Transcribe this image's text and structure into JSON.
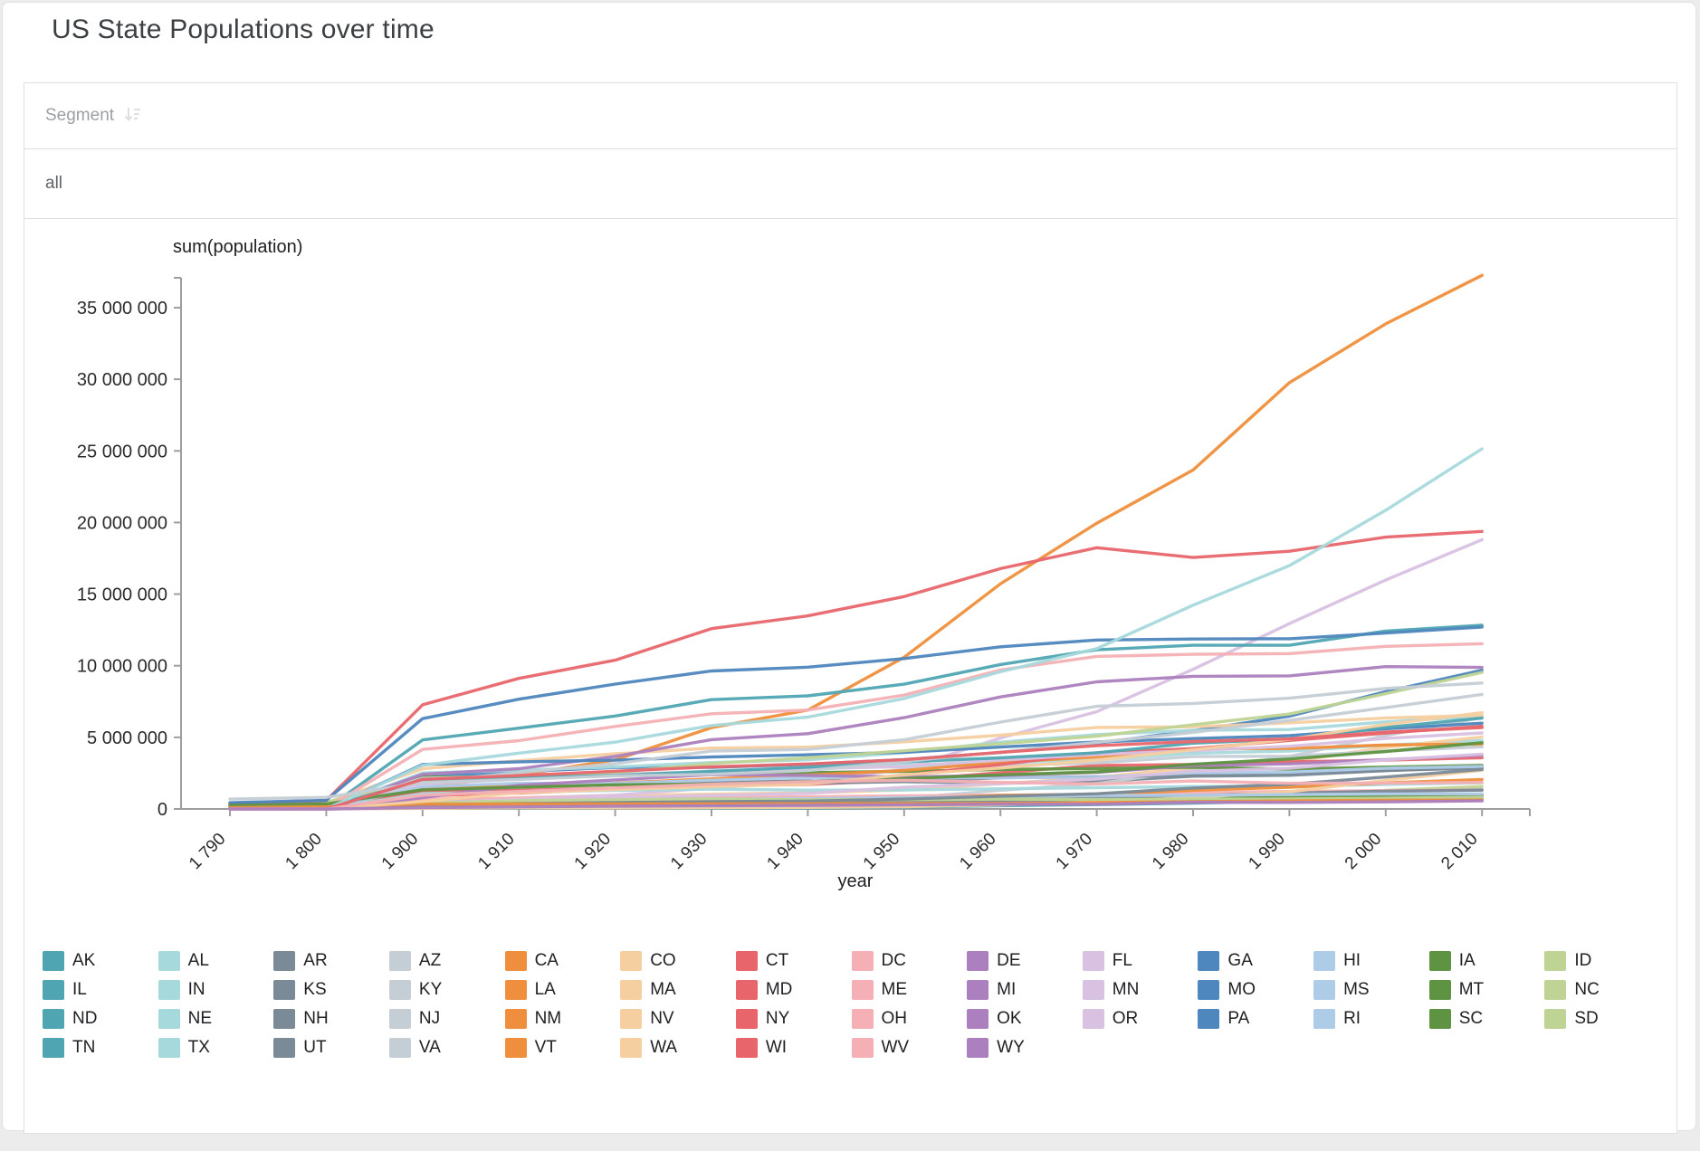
{
  "page": {
    "title": "US State Populations over time"
  },
  "segment_table": {
    "header_label": "Segment",
    "sort_icon": "sort-descending-icon",
    "selected_value": "all"
  },
  "chart_data": {
    "type": "line",
    "xlabel": "year",
    "ylabel": "sum(population)",
    "x": [
      1790,
      1800,
      1900,
      1910,
      1920,
      1930,
      1940,
      1950,
      1960,
      1970,
      1980,
      1990,
      2000,
      2010
    ],
    "x_tick_labels": [
      "1 790",
      "1 800",
      "1 900",
      "1 910",
      "1 920",
      "1 930",
      "1 940",
      "1 950",
      "1 960",
      "1 970",
      "1 980",
      "1 990",
      "2 000",
      "2 010"
    ],
    "y_ticks": [
      0,
      5000000,
      10000000,
      15000000,
      20000000,
      25000000,
      30000000,
      35000000
    ],
    "y_tick_labels": [
      "0",
      "5 000 000",
      "10 000 000",
      "15 000 000",
      "20 000 000",
      "25 000 000",
      "30 000 000",
      "35 000 000"
    ],
    "ylim": [
      0,
      37100000
    ],
    "grid": false,
    "legend_position": "bottom",
    "palette": [
      "#4FA5B2",
      "#A6D9DC",
      "#7A8A97",
      "#C5CDD5",
      "#EF8E3C",
      "#F5CFA0",
      "#E8666B",
      "#F4B0B4",
      "#AC7FBE",
      "#D9C1E1",
      "#4E86BE",
      "#AECBE8",
      "#5E9441",
      "#BFD494"
    ],
    "series": [
      {
        "name": "AK",
        "values": [
          0,
          0,
          63592,
          64356,
          55036,
          59278,
          72524,
          128643,
          226167,
          302173,
          401851,
          550043,
          626932,
          710231
        ]
      },
      {
        "name": "AL",
        "values": [
          0,
          1250,
          1828697,
          2138093,
          2348174,
          2646248,
          2832961,
          3061743,
          3266740,
          3444165,
          3893888,
          4040587,
          4447100,
          4779736
        ]
      },
      {
        "name": "AR",
        "values": [
          0,
          0,
          1311564,
          1574449,
          1752204,
          1854482,
          1949387,
          1909511,
          1786272,
          1923295,
          2286435,
          2350725,
          2673400,
          2915918
        ]
      },
      {
        "name": "AZ",
        "values": [
          0,
          0,
          122931,
          204354,
          334162,
          435573,
          499261,
          749587,
          1302161,
          1770900,
          2718215,
          3665228,
          5130632,
          6392017
        ]
      },
      {
        "name": "CA",
        "values": [
          0,
          0,
          1485053,
          2377549,
          3426861,
          5677251,
          6907387,
          10586223,
          15717204,
          19953134,
          23667902,
          29760021,
          33871648,
          37253956
        ]
      },
      {
        "name": "CO",
        "values": [
          0,
          0,
          539700,
          799024,
          939629,
          1035791,
          1123296,
          1325089,
          1753947,
          2207259,
          2889964,
          3294394,
          4301261,
          5029196
        ]
      },
      {
        "name": "CT",
        "values": [
          237946,
          251002,
          908420,
          1114756,
          1380631,
          1606903,
          1709242,
          2007280,
          2535234,
          3031709,
          3107576,
          3287116,
          3405565,
          3574097
        ]
      },
      {
        "name": "DC",
        "values": [
          0,
          8144,
          278718,
          331069,
          437571,
          486869,
          663091,
          802178,
          763956,
          756510,
          638333,
          606900,
          572059,
          601723
        ]
      },
      {
        "name": "DE",
        "values": [
          59096,
          64273,
          184735,
          202322,
          223003,
          238380,
          266505,
          318085,
          446292,
          548104,
          594338,
          666168,
          783600,
          897934
        ]
      },
      {
        "name": "FL",
        "values": [
          0,
          0,
          528542,
          752619,
          968470,
          1468211,
          1897414,
          2771305,
          4951560,
          6789443,
          9746324,
          12937926,
          15982378,
          18801310
        ]
      },
      {
        "name": "GA",
        "values": [
          82548,
          162686,
          2216331,
          2609121,
          2895832,
          2908506,
          3123723,
          3444578,
          3943116,
          4589575,
          5463105,
          6478216,
          8186453,
          9687653
        ]
      },
      {
        "name": "HI",
        "values": [
          0,
          0,
          154001,
          191874,
          255881,
          368300,
          422770,
          499794,
          632772,
          769913,
          964691,
          1108229,
          1211537,
          1360301
        ]
      },
      {
        "name": "IA",
        "values": [
          0,
          0,
          2231853,
          2224771,
          2404021,
          2470939,
          2538268,
          2621073,
          2757537,
          2824376,
          2913808,
          2776755,
          2926324,
          3046355
        ]
      },
      {
        "name": "ID",
        "values": [
          0,
          0,
          161772,
          325594,
          431866,
          445032,
          524873,
          588637,
          667191,
          712567,
          943935,
          1006749,
          1293953,
          1567582
        ]
      },
      {
        "name": "IL",
        "values": [
          0,
          0,
          4821550,
          5638591,
          6485280,
          7630654,
          7897241,
          8712176,
          10081158,
          11113976,
          11426518,
          11430602,
          12419293,
          12830632
        ]
      },
      {
        "name": "IN",
        "values": [
          0,
          5641,
          2516462,
          2700876,
          2930390,
          3238503,
          3427796,
          3934224,
          4662498,
          5193669,
          5490224,
          5544159,
          6080485,
          6483802
        ]
      },
      {
        "name": "KS",
        "values": [
          0,
          0,
          1470495,
          1690949,
          1769257,
          1880999,
          1801028,
          1905299,
          2178611,
          2246578,
          2363679,
          2477574,
          2688418,
          2853118
        ]
      },
      {
        "name": "KY",
        "values": [
          73677,
          220955,
          2147174,
          2289905,
          2416630,
          2614589,
          2845627,
          2944806,
          3038156,
          3218706,
          3660777,
          3685296,
          4041769,
          4339367
        ]
      },
      {
        "name": "LA",
        "values": [
          0,
          0,
          1381625,
          1656388,
          1798509,
          2101593,
          2363880,
          2683516,
          3257022,
          3641306,
          4205900,
          4219973,
          4468976,
          4533372
        ]
      },
      {
        "name": "MA",
        "values": [
          378787,
          422845,
          2805346,
          3366416,
          3852356,
          4249614,
          4316721,
          4690514,
          5148578,
          5689170,
          5737037,
          6016425,
          6349097,
          6547629
        ]
      },
      {
        "name": "MD",
        "values": [
          319728,
          341548,
          1188044,
          1295346,
          1449661,
          1631526,
          1821244,
          2343001,
          3100689,
          3922399,
          4216975,
          4781468,
          5296486,
          5773552
        ]
      },
      {
        "name": "ME",
        "values": [
          96540,
          151719,
          694466,
          742371,
          768014,
          797423,
          847226,
          913774,
          969265,
          992048,
          1124660,
          1227928,
          1274923,
          1328361
        ]
      },
      {
        "name": "MI",
        "values": [
          0,
          0,
          2420982,
          2810173,
          3668412,
          4842325,
          5256106,
          6371766,
          7823194,
          8875083,
          9262078,
          9295297,
          9938444,
          9883640
        ]
      },
      {
        "name": "MN",
        "values": [
          0,
          0,
          1751394,
          2075708,
          2387125,
          2563953,
          2792300,
          2982483,
          3413864,
          3804971,
          4075970,
          4375099,
          4919479,
          5303925
        ]
      },
      {
        "name": "MO",
        "values": [
          0,
          0,
          3106665,
          3293335,
          3404055,
          3629367,
          3784664,
          3954653,
          4319813,
          4676501,
          4916686,
          5117073,
          5595211,
          5988927
        ]
      },
      {
        "name": "MS",
        "values": [
          0,
          7600,
          1551270,
          1797114,
          1790618,
          2009821,
          2183796,
          2178914,
          2178141,
          2216912,
          2520638,
          2573216,
          2844658,
          2967297
        ]
      },
      {
        "name": "MT",
        "values": [
          0,
          0,
          243329,
          376053,
          548889,
          537606,
          559456,
          591024,
          674767,
          694409,
          786690,
          799065,
          902195,
          989415
        ]
      },
      {
        "name": "NC",
        "values": [
          393751,
          478103,
          1893810,
          2206287,
          2559123,
          3170276,
          3571623,
          4061929,
          4556155,
          5082059,
          5881766,
          6628637,
          8049313,
          9535483
        ]
      },
      {
        "name": "ND",
        "values": [
          0,
          0,
          319146,
          577056,
          646872,
          680845,
          641935,
          619636,
          632446,
          617761,
          652717,
          638800,
          642200,
          672591
        ]
      },
      {
        "name": "NE",
        "values": [
          0,
          0,
          1066300,
          1192214,
          1296372,
          1377963,
          1315834,
          1325510,
          1411330,
          1483493,
          1569825,
          1578385,
          1711263,
          1826341
        ]
      },
      {
        "name": "NH",
        "values": [
          141885,
          183858,
          411588,
          430572,
          443083,
          465293,
          491524,
          533242,
          606921,
          737681,
          920610,
          1109252,
          1235786,
          1316470
        ]
      },
      {
        "name": "NJ",
        "values": [
          184139,
          211149,
          1883669,
          2537167,
          3155900,
          4041334,
          4160165,
          4835329,
          6066782,
          7168164,
          7364823,
          7730188,
          8414350,
          8791894
        ]
      },
      {
        "name": "NM",
        "values": [
          0,
          0,
          195310,
          327301,
          360350,
          423317,
          531818,
          681187,
          951023,
          1016000,
          1302894,
          1515069,
          1819046,
          2059179
        ]
      },
      {
        "name": "NV",
        "values": [
          0,
          0,
          42335,
          81875,
          77407,
          91058,
          110247,
          160083,
          285278,
          488738,
          800493,
          1201833,
          1998257,
          2700551
        ]
      },
      {
        "name": "NY",
        "values": [
          340120,
          589051,
          7268894,
          9113614,
          10385227,
          12588066,
          13479142,
          14830192,
          16782304,
          18236967,
          17558072,
          17990455,
          18976457,
          19378102
        ]
      },
      {
        "name": "OH",
        "values": [
          0,
          45365,
          4157545,
          4767121,
          5759394,
          6646697,
          6907612,
          7946627,
          9706397,
          10652017,
          10797630,
          10847115,
          11353140,
          11536504
        ]
      },
      {
        "name": "OK",
        "values": [
          0,
          0,
          790391,
          1657155,
          2028283,
          2396040,
          2336434,
          2233351,
          2328284,
          2559229,
          3025290,
          3145585,
          3450654,
          3751351
        ]
      },
      {
        "name": "OR",
        "values": [
          0,
          0,
          413536,
          672765,
          783389,
          953786,
          1089684,
          1521341,
          1768687,
          2091385,
          2633105,
          2842321,
          3421399,
          3831074
        ]
      },
      {
        "name": "PA",
        "values": [
          434373,
          602365,
          6302115,
          7665111,
          8720017,
          9631350,
          9900180,
          10498012,
          11319366,
          11793909,
          11863895,
          11881643,
          12281054,
          12702379
        ]
      },
      {
        "name": "RI",
        "values": [
          68825,
          69122,
          428556,
          542610,
          604397,
          687497,
          713346,
          791896,
          859488,
          946725,
          947154,
          1003464,
          1048319,
          1052567
        ]
      },
      {
        "name": "SC",
        "values": [
          249073,
          345591,
          1340316,
          1515400,
          1683724,
          1738765,
          1899804,
          2117027,
          2382594,
          2590516,
          3121820,
          3486703,
          4012012,
          4625364
        ]
      },
      {
        "name": "SD",
        "values": [
          0,
          0,
          401570,
          583888,
          636547,
          692849,
          642961,
          652740,
          680514,
          665507,
          690768,
          696004,
          754844,
          814180
        ]
      },
      {
        "name": "TN",
        "values": [
          35691,
          105602,
          2020616,
          2184789,
          2337885,
          2616556,
          2915841,
          3291718,
          3567089,
          3923687,
          4591120,
          4877185,
          5689283,
          6346105
        ]
      },
      {
        "name": "TX",
        "values": [
          0,
          0,
          3048710,
          3896542,
          4663228,
          5824715,
          6414824,
          7711194,
          9579677,
          11196730,
          14229191,
          16986510,
          20851820,
          25145561
        ]
      },
      {
        "name": "UT",
        "values": [
          0,
          0,
          276749,
          373351,
          449396,
          507847,
          550310,
          688862,
          890627,
          1059273,
          1461037,
          1722850,
          2233169,
          2763885
        ]
      },
      {
        "name": "VA",
        "values": [
          691737,
          807557,
          1854184,
          2061612,
          2309187,
          2421851,
          2677773,
          3318680,
          3966949,
          4648494,
          5346818,
          6187358,
          7078515,
          8001024
        ]
      },
      {
        "name": "VT",
        "values": [
          85425,
          154465,
          343641,
          355956,
          352428,
          359611,
          359231,
          377747,
          389881,
          444330,
          511456,
          562758,
          608827,
          625741
        ]
      },
      {
        "name": "WA",
        "values": [
          0,
          0,
          518103,
          1141990,
          1356621,
          1563396,
          1736191,
          2378963,
          2853214,
          3409169,
          4132156,
          4866692,
          5894121,
          6724540
        ]
      },
      {
        "name": "WI",
        "values": [
          0,
          0,
          2069042,
          2333860,
          2632067,
          2939006,
          3137587,
          3434575,
          3951777,
          4417731,
          4705767,
          4891769,
          5363675,
          5686986
        ]
      },
      {
        "name": "WV",
        "values": [
          0,
          0,
          958800,
          1221119,
          1463701,
          1729205,
          1901974,
          2005552,
          1860421,
          1744237,
          1949644,
          1793477,
          1808344,
          1852994
        ]
      },
      {
        "name": "WY",
        "values": [
          0,
          0,
          92531,
          145965,
          194402,
          225565,
          250742,
          290529,
          330066,
          332416,
          469557,
          453588,
          493782,
          563626
        ]
      }
    ]
  }
}
